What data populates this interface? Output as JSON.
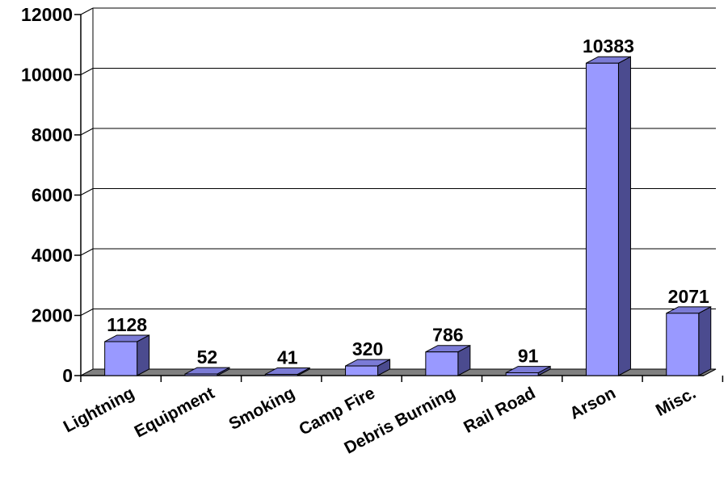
{
  "chart_data": {
    "type": "bar",
    "title": "",
    "xlabel": "",
    "ylabel": "",
    "categories": [
      "Lightning",
      "Equipment",
      "Smoking",
      "Camp Fire",
      "Debris Burning",
      "Rail Road",
      "Arson",
      "Misc."
    ],
    "values": [
      1128,
      52,
      41,
      320,
      786,
      91,
      10383,
      2071
    ],
    "ylim": [
      0,
      12000
    ],
    "yticks": [
      0,
      2000,
      4000,
      6000,
      8000,
      10000,
      12000
    ],
    "grid": true,
    "legend": "none",
    "data_labels": true,
    "three_d": true
  },
  "colors": {
    "bar_front": "#9999ff",
    "bar_side": "#4b4b8f",
    "bar_top": "#7b7bd6",
    "floor": "#808080",
    "gridline": "#000000"
  }
}
